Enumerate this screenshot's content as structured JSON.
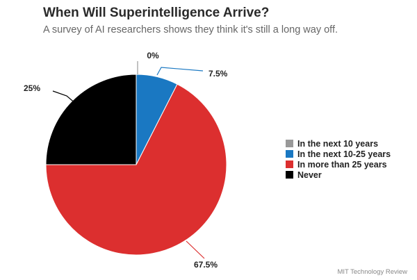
{
  "chart_data": {
    "type": "pie",
    "title": "When Will Superintelligence Arrive?",
    "subtitle": "A survey of AI researchers shows they think it's still a long way off.",
    "categories": [
      "In the next 10 years",
      "In the next 10-25 years",
      "In more than 25 years",
      "Never"
    ],
    "values": [
      0,
      7.5,
      67.5,
      25
    ],
    "labels": [
      "0%",
      "7.5%",
      "67.5%",
      "25%"
    ],
    "colors": [
      "#999999",
      "#1a78c2",
      "#dc2f2f",
      "#000000"
    ],
    "legend_position": "right",
    "start_angle": "12 o'clock",
    "direction": "clockwise"
  },
  "source": "MIT Technology Review"
}
